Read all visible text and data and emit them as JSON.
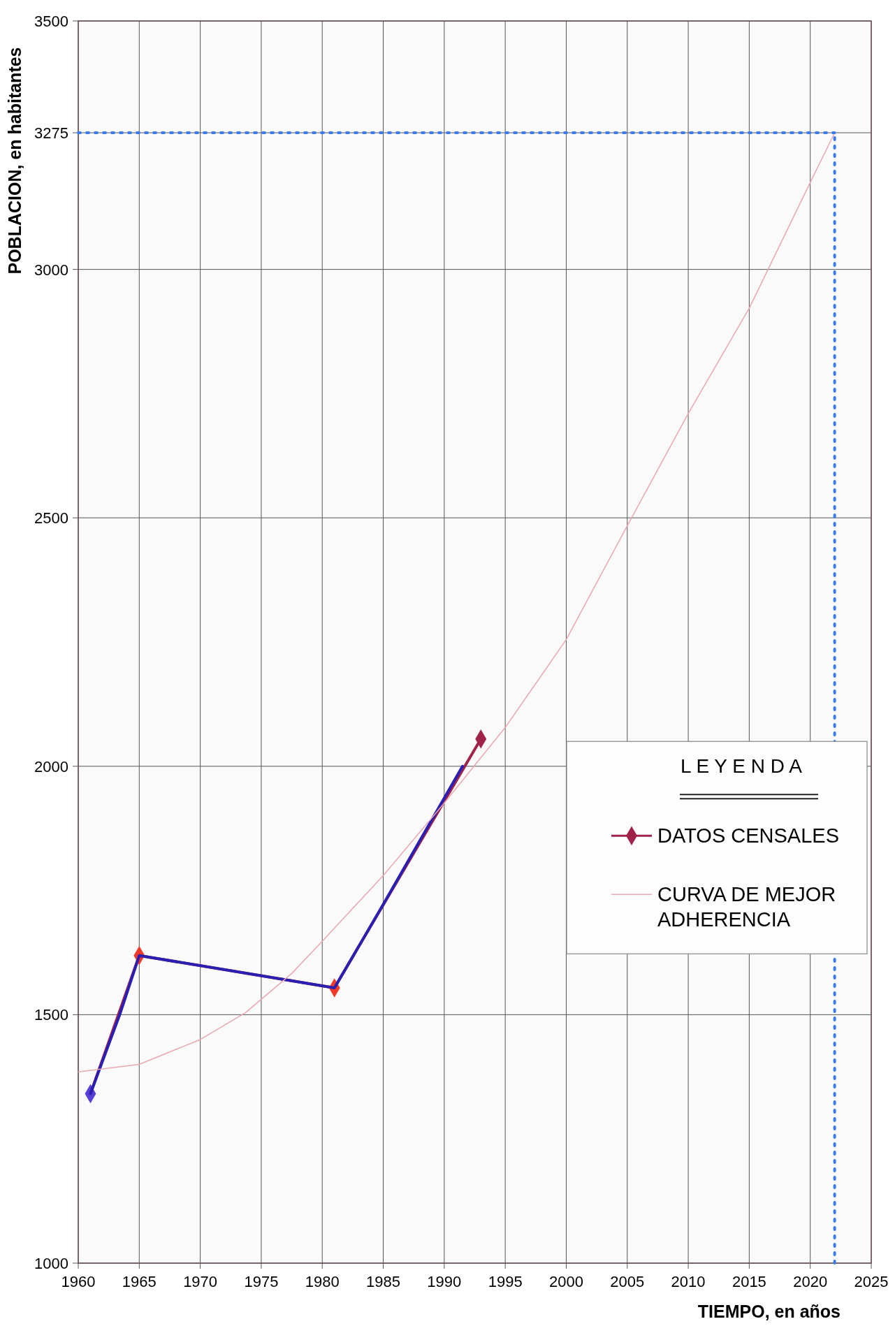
{
  "chart_data": {
    "type": "line",
    "xlabel": "TIEMPO, en años",
    "ylabel": "POBLACION, en habitantes",
    "legend_title": "L E Y E N D A",
    "legend": "bottom right",
    "grid": true,
    "xlim": [
      1960,
      2025
    ],
    "xticks": [
      1960,
      1965,
      1970,
      1975,
      1980,
      1985,
      1990,
      1995,
      2000,
      2005,
      2010,
      2015,
      2020,
      2025
    ],
    "ylim": [
      1000,
      3500
    ],
    "yticks": [
      1000,
      1500,
      2000,
      2500,
      3000,
      3275,
      3500
    ],
    "series": [
      {
        "name": "DATOS CENSALES",
        "color": "#a0244a",
        "marker": "diamond",
        "line_style": "solid",
        "x": [
          1961,
          1965,
          1981,
          1993
        ],
        "values": [
          1341,
          1619,
          1554,
          2055
        ],
        "colors": [
          "#5a3fd6",
          "#f03a2a",
          "#f03a2a",
          "#a0244a"
        ]
      },
      {
        "color": "#2a1fb0",
        "marker": "none",
        "line_style": "solid",
        "x": [
          1961,
          1963.4,
          1965,
          1981,
          1985,
          1991.5
        ],
        "values": [
          1341,
          1500,
          1619,
          1554,
          1722,
          2000
        ]
      },
      {
        "name": "CURVA DE MEJOR ADHERENCIA",
        "color": "#e8a8b0",
        "marker": "none",
        "line_style": "solid",
        "x": [
          1960,
          1965,
          1970,
          1973.7,
          1977.5,
          1980,
          1985,
          1990,
          1995,
          2000,
          2005,
          2010,
          2015,
          2020,
          2022
        ],
        "values": [
          1385,
          1400,
          1450,
          1504,
          1583,
          1648,
          1780,
          1926,
          2078,
          2255,
          2484,
          2710,
          2922,
          3175,
          3275
        ]
      },
      {
        "color": "#3b7bea",
        "marker": "none",
        "line_style": "dotted",
        "x": [
          1960,
          2022
        ],
        "values": [
          3275,
          3275
        ]
      },
      {
        "color": "#3b7bea",
        "marker": "none",
        "line_style": "dotted",
        "x": [
          2022,
          2022
        ],
        "values": [
          1000,
          3275
        ]
      }
    ]
  }
}
